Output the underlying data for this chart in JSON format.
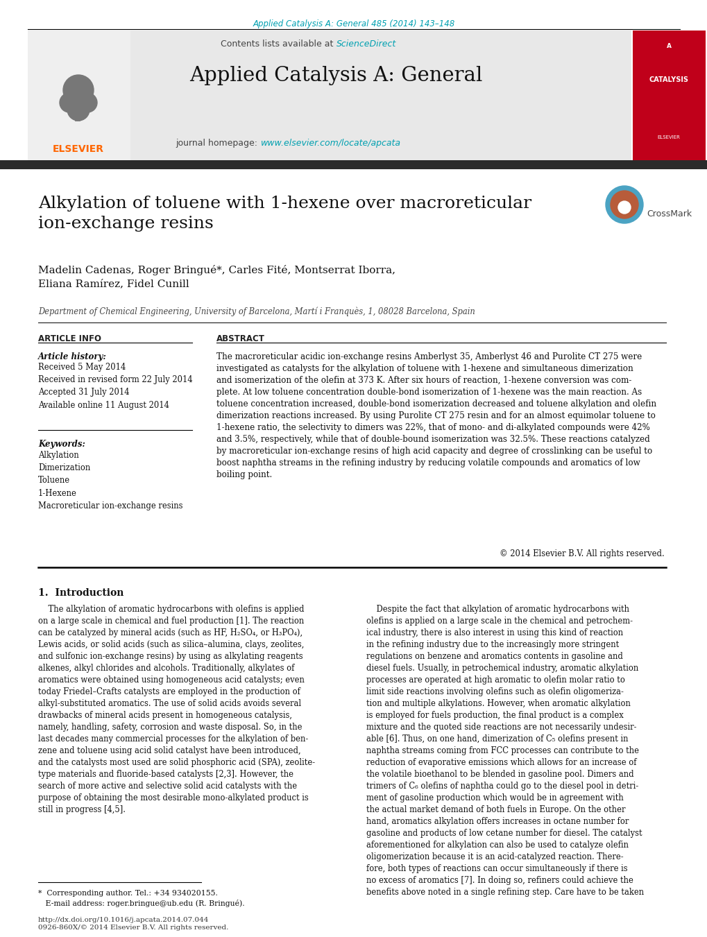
{
  "page_color": "#ffffff",
  "top_citation": "Applied Catalysis A: General 485 (2014) 143–148",
  "top_citation_color": "#00a0b0",
  "header_bg": "#e8e8e8",
  "contents_text": "Contents lists available at ",
  "science_direct": "ScienceDirect",
  "science_direct_color": "#00a0b0",
  "journal_title": "Applied Catalysis A: General",
  "journal_homepage_text": "journal homepage: ",
  "journal_url": "www.elsevier.com/locate/apcata",
  "journal_url_color": "#00a0b0",
  "elsevier_color": "#ff6600",
  "dark_bar_color": "#2b2b2b",
  "paper_title": "Alkylation of toluene with 1-hexene over macroreticular\nion-exchange resins",
  "authors": "Madelin Cadenas, Roger Bringué*, Carles Fité, Montserrat Iborra,\nEliana Ramírez, Fidel Cunill",
  "affiliation": "Department of Chemical Engineering, University of Barcelona, Martí i Franquès, 1, 08028 Barcelona, Spain",
  "article_info_label": "ARTICLE INFO",
  "abstract_label": "ABSTRACT",
  "article_history_label": "Article history:",
  "article_history": "Received 5 May 2014\nReceived in revised form 22 July 2014\nAccepted 31 July 2014\nAvailable online 11 August 2014",
  "keywords_label": "Keywords:",
  "keywords": "Alkylation\nDimerization\nToluene\n1-Hexene\nMacroreticular ion-exchange resins",
  "abstract_text": "The macroreticular acidic ion-exchange resins Amberlyst 35, Amberlyst 46 and Purolite CT 275 were\ninvestigated as catalysts for the alkylation of toluene with 1-hexene and simultaneous dimerization\nand isomerization of the olefin at 373 K. After six hours of reaction, 1-hexene conversion was com-\nplete. At low toluene concentration double-bond isomerization of 1-hexene was the main reaction. As\ntoluene concentration increased, double-bond isomerization decreased and toluene alkylation and olefin\ndimerization reactions increased. By using Purolite CT 275 resin and for an almost equimolar toluene to\n1-hexene ratio, the selectivity to dimers was 22%, that of mono- and di-alkylated compounds were 42%\nand 3.5%, respectively, while that of double-bound isomerization was 32.5%. These reactions catalyzed\nby macroreticular ion-exchange resins of high acid capacity and degree of crosslinking can be useful to\nboost naphtha streams in the refining industry by reducing volatile compounds and aromatics of low\nboiling point.",
  "copyright_text": "© 2014 Elsevier B.V. All rights reserved.",
  "intro_heading": "1.  Introduction",
  "intro_text_left": "    The alkylation of aromatic hydrocarbons with olefins is applied\non a large scale in chemical and fuel production [1]. The reaction\ncan be catalyzed by mineral acids (such as HF, H₂SO₄, or H₃PO₄),\nLewis acids, or solid acids (such as silica–alumina, clays, zeolites,\nand sulfonic ion-exchange resins) by using as alkylating reagents\nalkenes, alkyl chlorides and alcohols. Traditionally, alkylates of\naromatics were obtained using homogeneous acid catalysts; even\ntoday Friedel–Crafts catalysts are employed in the production of\nalkyl-substituted aromatics. The use of solid acids avoids several\ndrawbacks of mineral acids present in homogeneous catalysis,\nnamely, handling, safety, corrosion and waste disposal. So, in the\nlast decades many commercial processes for the alkylation of ben-\nzene and toluene using acid solid catalyst have been introduced,\nand the catalysts most used are solid phosphoric acid (SPA), zeolite-\ntype materials and fluoride-based catalysts [2,3]. However, the\nsearch of more active and selective solid acid catalysts with the\npurpose of obtaining the most desirable mono-alkylated product is\nstill in progress [4,5].",
  "intro_text_right": "    Despite the fact that alkylation of aromatic hydrocarbons with\nolefins is applied on a large scale in the chemical and petrochem-\nical industry, there is also interest in using this kind of reaction\nin the refining industry due to the increasingly more stringent\nregulations on benzene and aromatics contents in gasoline and\ndiesel fuels. Usually, in petrochemical industry, aromatic alkylation\nprocesses are operated at high aromatic to olefin molar ratio to\nlimit side reactions involving olefins such as olefin oligomeriza-\ntion and multiple alkylations. However, when aromatic alkylation\nis employed for fuels production, the final product is a complex\nmixture and the quoted side reactions are not necessarily undesir-\nable [6]. Thus, on one hand, dimerization of C₅ olefins present in\nnaphtha streams coming from FCC processes can contribute to the\nreduction of evaporative emissions which allows for an increase of\nthe volatile bioethanol to be blended in gasoline pool. Dimers and\ntrimers of C₆ olefins of naphtha could go to the diesel pool in detri-\nment of gasoline production which would be in agreement with\nthe actual market demand of both fuels in Europe. On the other\nhand, aromatics alkylation offers increases in octane number for\ngasoline and products of low cetane number for diesel. The catalyst\naforementioned for alkylation can also be used to catalyze olefin\noligomerization because it is an acid-catalyzed reaction. There-\nfore, both types of reactions can occur simultaneously if there is\nno excess of aromatics [7]. In doing so, refiners could achieve the\nbenefits above noted in a single refining step. Care have to be taken",
  "footer_text": "*  Corresponding author. Tel.: +34 934020155.\n   E-mail address: roger.bringue@ub.edu (R. Bringué).",
  "footer_url": "http://dx.doi.org/10.1016/j.apcata.2014.07.044\n0926-860X/© 2014 Elsevier B.V. All rights reserved."
}
